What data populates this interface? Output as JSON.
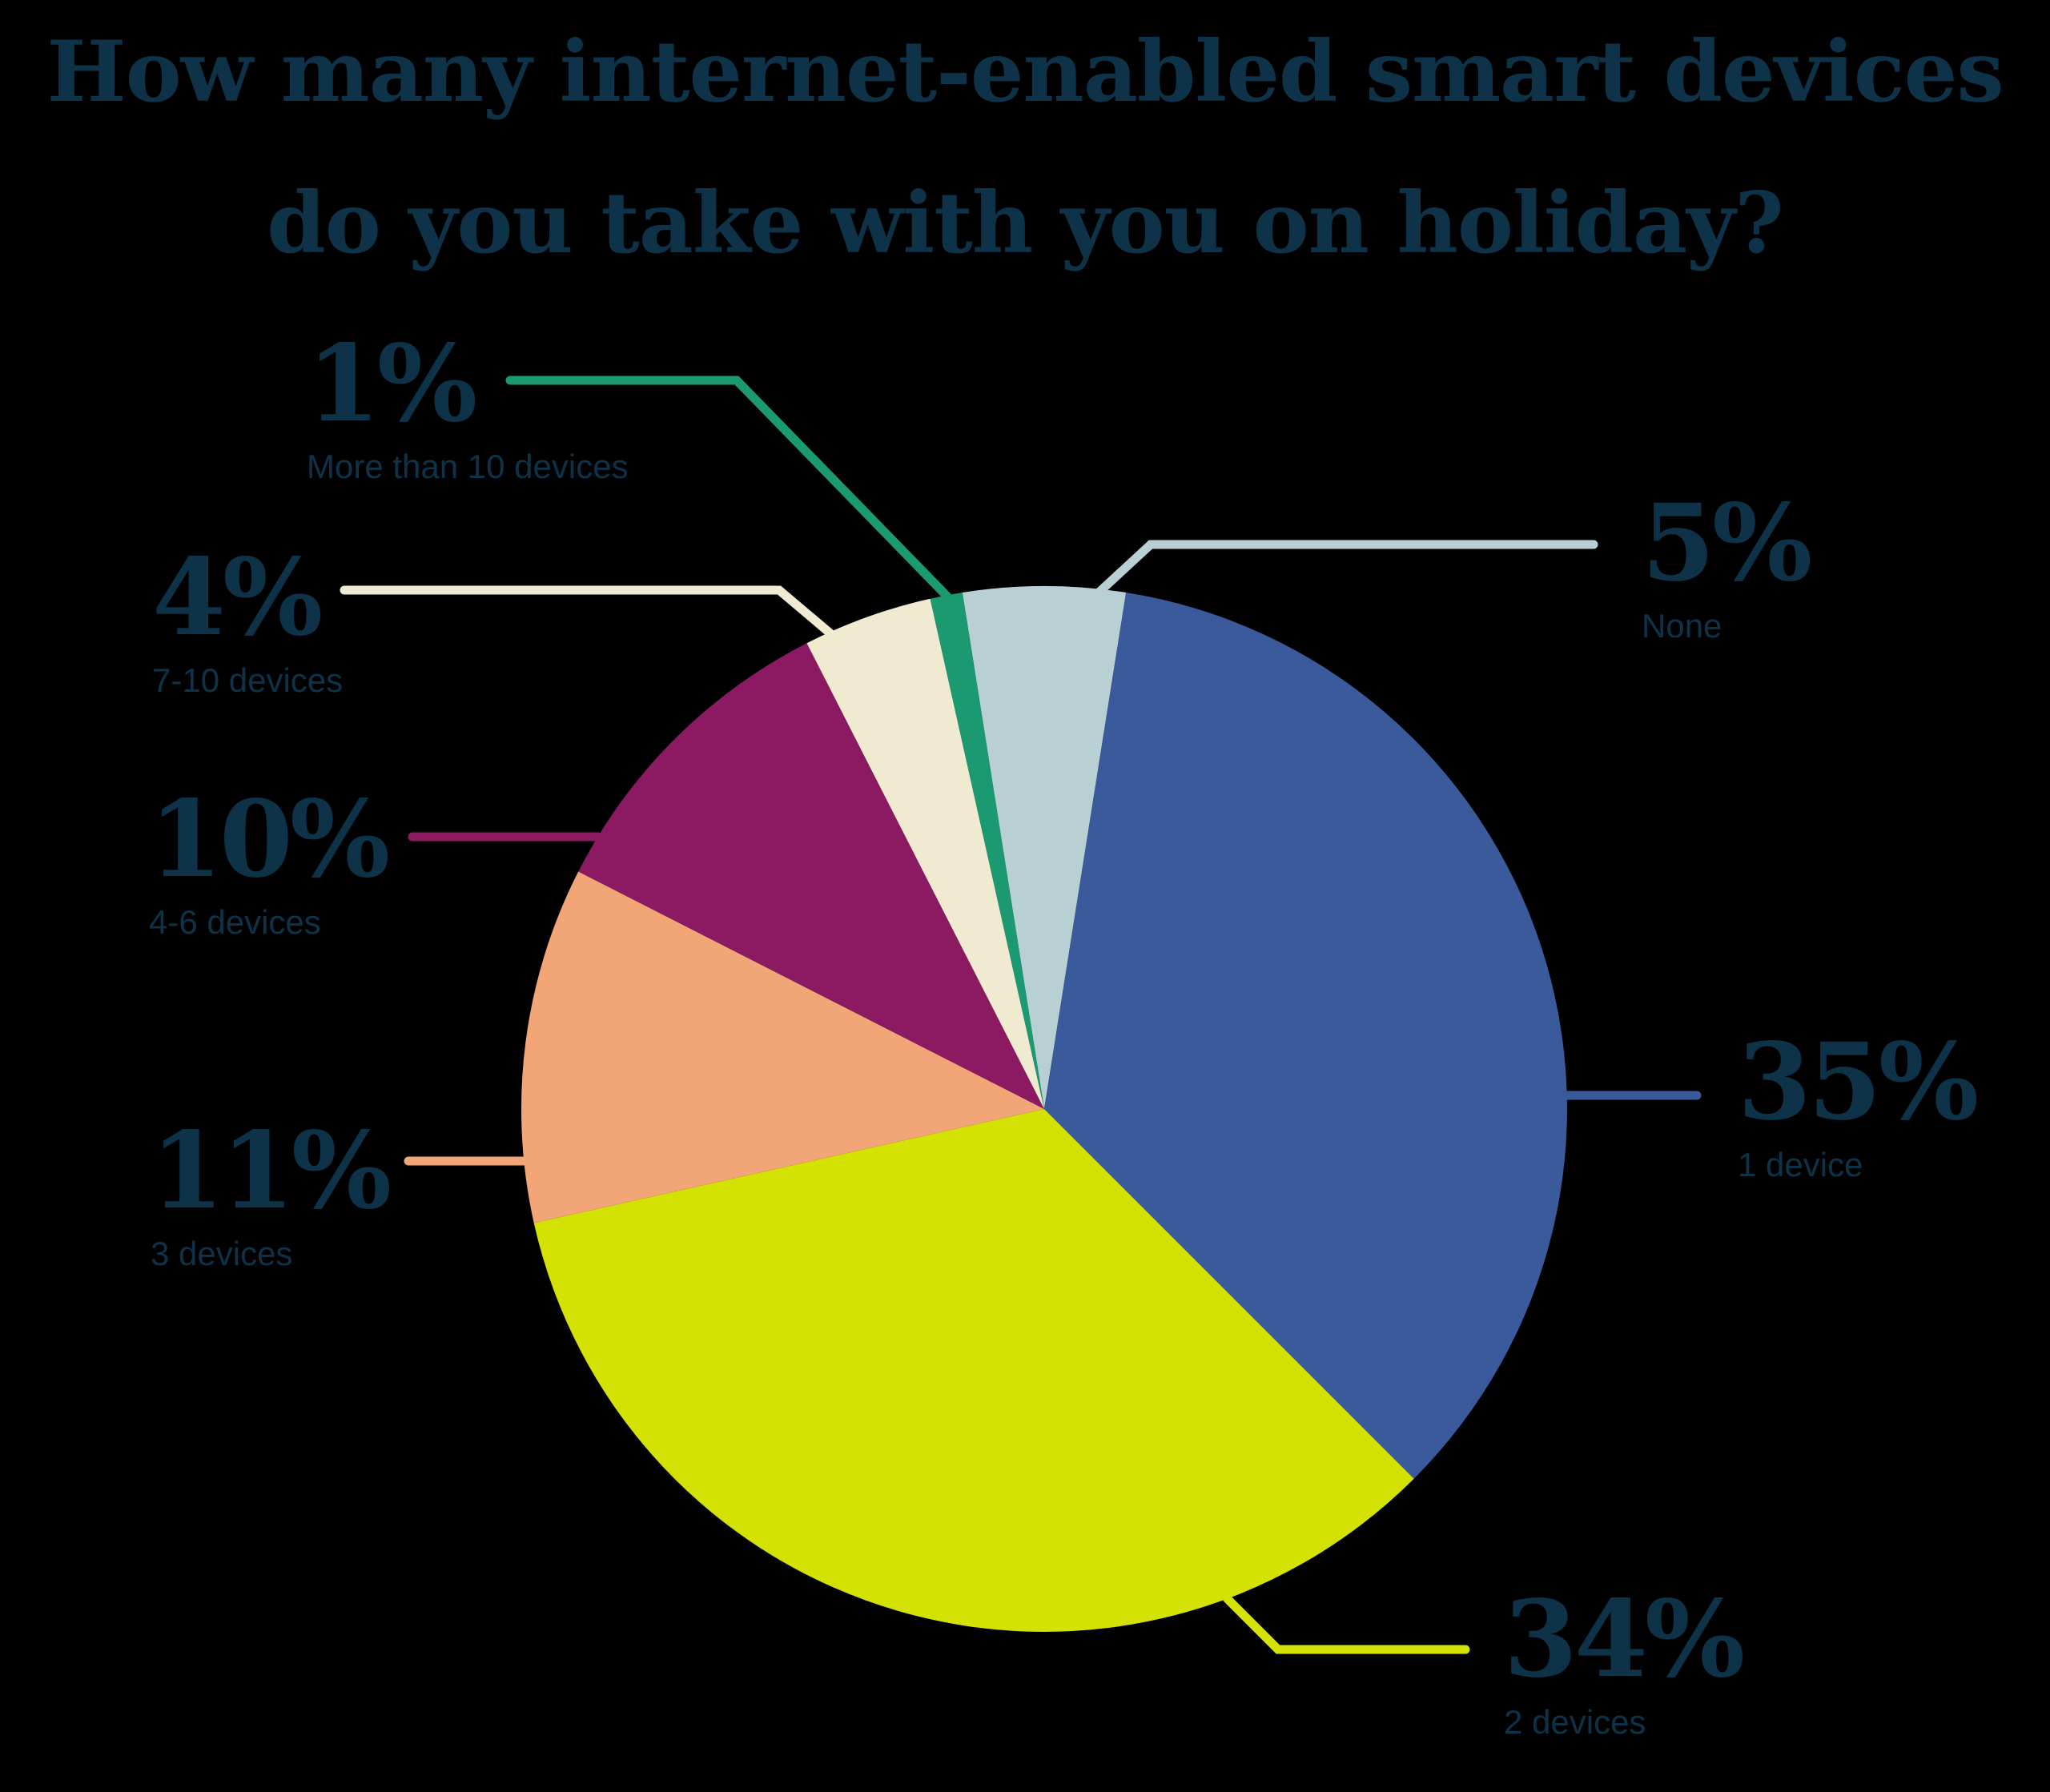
{
  "title": {
    "line1": "How many internet-enabled smart devices",
    "line2": "do you take with you on holiday?"
  },
  "colors": {
    "background": "#000000",
    "text": "#0E3349",
    "slice_none": "#B8D0D4",
    "slice_1_device": "#3A5A9C",
    "slice_2_devices": "#D4E203",
    "slice_3_devices": "#F2A576",
    "slice_4_6_devices": "#8B1A63",
    "slice_7_10_devices": "#F0EAD0",
    "slice_more_than_10": "#1B9A72"
  },
  "chart_data": {
    "type": "pie",
    "title": "How many internet-enabled smart devices do you take with you on holiday?",
    "start_angle_deg": -9,
    "direction": "clockwise",
    "legend_position": "callouts",
    "slices": [
      {
        "label": "None",
        "value_pct": 5,
        "color": "#B8D0D4"
      },
      {
        "label": "1 device",
        "value_pct": 35,
        "color": "#3A5A9C"
      },
      {
        "label": "2 devices",
        "value_pct": 34,
        "color": "#D4E203"
      },
      {
        "label": "3 devices",
        "value_pct": 11,
        "color": "#F2A576"
      },
      {
        "label": "4-6 devices",
        "value_pct": 10,
        "color": "#8B1A63"
      },
      {
        "label": "7-10 devices",
        "value_pct": 4,
        "color": "#F0EAD0"
      },
      {
        "label": "More than 10 devices",
        "value_pct": 1,
        "color": "#1B9A72"
      }
    ]
  },
  "callouts": [
    {
      "pct_text": "1%",
      "label": "More than 10 devices",
      "color": "#1B9A72"
    },
    {
      "pct_text": "4%",
      "label": "7-10 devices",
      "color": "#F0EAD0"
    },
    {
      "pct_text": "10%",
      "label": "4-6 devices",
      "color": "#8B1A63"
    },
    {
      "pct_text": "11%",
      "label": "3 devices",
      "color": "#F2A576"
    },
    {
      "pct_text": "5%",
      "label": "None",
      "color": "#B8D0D4"
    },
    {
      "pct_text": "35%",
      "label": "1 device",
      "color": "#3A5A9C"
    },
    {
      "pct_text": "34%",
      "label": "2 devices",
      "color": "#D4E203"
    }
  ]
}
